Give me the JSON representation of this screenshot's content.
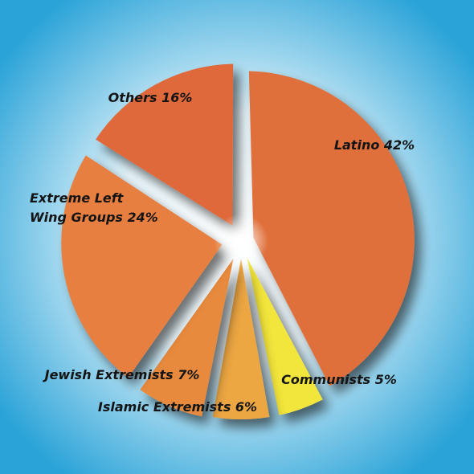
{
  "chart_data": {
    "type": "pie",
    "slices": [
      {
        "label": "Latino 42%",
        "value": 42,
        "color": "#e0703a"
      },
      {
        "label": "Communists 5%",
        "value": 5,
        "color": "#f2e53a"
      },
      {
        "label": "Islamic Extremists 6%",
        "value": 6,
        "color": "#eca642"
      },
      {
        "label": "Jewish Extremists 7%",
        "value": 7,
        "color": "#e88a3e"
      },
      {
        "label": "Extreme Left Wing Groups 24%",
        "value": 24,
        "color": "#e77f40"
      },
      {
        "label": "Others 16%",
        "value": 16,
        "color": "#e0693a"
      }
    ],
    "legend": "none",
    "background": {
      "outer": "#2aa3d8",
      "inner": "#ffffff"
    }
  }
}
